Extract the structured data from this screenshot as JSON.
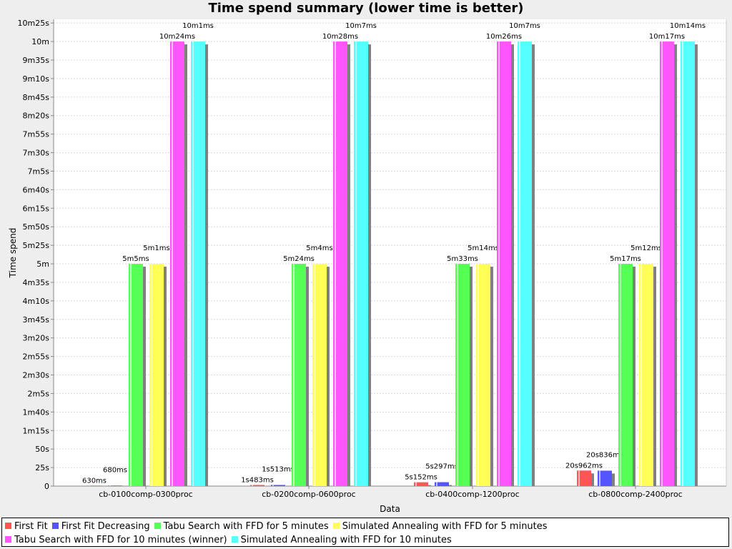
{
  "chart_data": {
    "type": "bar",
    "title": "Time spend summary (lower time is better)",
    "xlabel": "Data",
    "ylabel": "Time spend",
    "ylim": [
      0,
      630
    ],
    "y_unit": "seconds",
    "grid": true,
    "legend_position": "bottom",
    "yticks": [
      {
        "v": 0,
        "label": "0"
      },
      {
        "v": 25,
        "label": "25s"
      },
      {
        "v": 50,
        "label": "50s"
      },
      {
        "v": 75,
        "label": "1m15s"
      },
      {
        "v": 100,
        "label": "1m40s"
      },
      {
        "v": 125,
        "label": "2m5s"
      },
      {
        "v": 150,
        "label": "2m30s"
      },
      {
        "v": 175,
        "label": "2m55s"
      },
      {
        "v": 200,
        "label": "3m20s"
      },
      {
        "v": 225,
        "label": "3m45s"
      },
      {
        "v": 250,
        "label": "4m10s"
      },
      {
        "v": 275,
        "label": "4m35s"
      },
      {
        "v": 300,
        "label": "5m"
      },
      {
        "v": 325,
        "label": "5m25s"
      },
      {
        "v": 350,
        "label": "5m50s"
      },
      {
        "v": 375,
        "label": "6m15s"
      },
      {
        "v": 400,
        "label": "6m40s"
      },
      {
        "v": 425,
        "label": "7m5s"
      },
      {
        "v": 450,
        "label": "7m30s"
      },
      {
        "v": 475,
        "label": "7m55s"
      },
      {
        "v": 500,
        "label": "8m20s"
      },
      {
        "v": 525,
        "label": "8m45s"
      },
      {
        "v": 550,
        "label": "9m10s"
      },
      {
        "v": 575,
        "label": "9m35s"
      },
      {
        "v": 600,
        "label": "10m"
      },
      {
        "v": 625,
        "label": "10m25s"
      }
    ],
    "categories": [
      "cb-0100comp-0300proc",
      "cb-0200comp-0600proc",
      "cb-0400comp-1200proc",
      "cb-0800comp-2400proc"
    ],
    "series": [
      {
        "name": "First Fit",
        "color": "#ff5555",
        "values": [
          0.63,
          1.483,
          5.152,
          20.962
        ],
        "labels": [
          "630ms",
          "1s483ms",
          "5s152ms",
          "20s962ms"
        ]
      },
      {
        "name": "First Fit Decreasing",
        "color": "#5555ff",
        "values": [
          0.68,
          1.513,
          5.297,
          20.836
        ],
        "labels": [
          "680ms",
          "1s513ms",
          "5s297ms",
          "20s836ms"
        ]
      },
      {
        "name": "Tabu Search with FFD for 5 minutes",
        "color": "#55ff55",
        "values": [
          300.005,
          300.024,
          300.033,
          300.017
        ],
        "labels": [
          "5m5ms",
          "5m24ms",
          "5m33ms",
          "5m17ms"
        ]
      },
      {
        "name": "Simulated Annealing with FFD for 5 minutes",
        "color": "#ffff55",
        "values": [
          300.001,
          300.004,
          300.014,
          300.012
        ],
        "labels": [
          "5m1ms",
          "5m4ms",
          "5m14ms",
          "5m12ms"
        ]
      },
      {
        "name": "Tabu Search with FFD for 10 minutes (winner)",
        "color": "#ff55ff",
        "values": [
          600.024,
          600.028,
          600.026,
          600.017
        ],
        "labels": [
          "10m24ms",
          "10m28ms",
          "10m26ms",
          "10m17ms"
        ]
      },
      {
        "name": "Simulated Annealing with FFD for 10 minutes",
        "color": "#55ffff",
        "values": [
          600.001,
          600.007,
          600.007,
          600.014
        ],
        "labels": [
          "10m1ms",
          "10m7ms",
          "10m7ms",
          "10m14ms"
        ]
      }
    ]
  }
}
